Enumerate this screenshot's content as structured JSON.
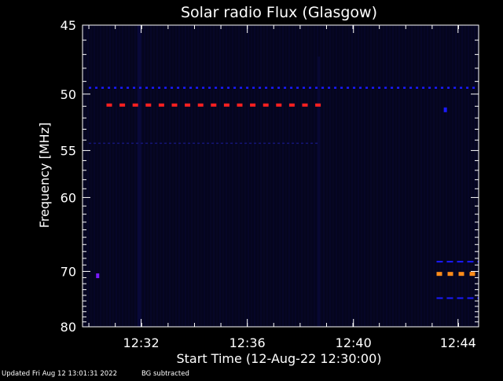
{
  "colors": {
    "background": "#000000",
    "axis": "#ffffff",
    "plot_background": "#05051e",
    "stripe": "#0a0a3c",
    "band_blue": "#1a1aff",
    "band_red": "#ff2020",
    "band_orange": "#ff8c1a",
    "dot_purple": "#7a1aff"
  },
  "chart_data": {
    "type": "heatmap",
    "title": "Solar radio Flux (Glasgow)",
    "xlabel": "Start Time (12-Aug-22 12:30:00)",
    "ylabel": "Frequency [MHz]",
    "x_unit": "minutes",
    "xlim": [
      12.496,
      12.746
    ],
    "ylim": [
      45,
      80
    ],
    "y_scale": "reciprocal",
    "grid": false,
    "x_ticks": [
      {
        "value": 12.533,
        "label": "12:32"
      },
      {
        "value": 12.6,
        "label": "12:36"
      },
      {
        "value": 12.667,
        "label": "12:40"
      },
      {
        "value": 12.733,
        "label": "12:44"
      }
    ],
    "y_ticks": [
      {
        "value": 45,
        "label": "45"
      },
      {
        "value": 50,
        "label": "50"
      },
      {
        "value": 55,
        "label": "55"
      },
      {
        "value": 60,
        "label": "60"
      },
      {
        "value": 70,
        "label": "70"
      },
      {
        "value": 80,
        "label": "80"
      }
    ],
    "features": [
      {
        "kind": "dashed-band",
        "freq_mhz": 49.5,
        "start": "12:30:00",
        "end": "12:45:00",
        "color": "band_blue"
      },
      {
        "kind": "dashed-band",
        "freq_mhz": 50.9,
        "start": "12:30:40",
        "end": "12:38:40",
        "color": "band_red"
      },
      {
        "kind": "dashed-band",
        "freq_mhz": 54.3,
        "start": "12:30:00",
        "end": "12:38:40",
        "color": "stripe"
      },
      {
        "kind": "dashed-band",
        "freq_mhz": 68.5,
        "start": "12:43:10",
        "end": "12:45:00",
        "color": "band_blue"
      },
      {
        "kind": "dashed-band",
        "freq_mhz": 70.4,
        "start": "12:43:10",
        "end": "12:45:00",
        "color": "band_orange"
      },
      {
        "kind": "dashed-band",
        "freq_mhz": 74.5,
        "start": "12:43:10",
        "end": "12:45:00",
        "color": "band_blue"
      },
      {
        "kind": "spot",
        "freq_mhz": 70.7,
        "time": "12:30:20",
        "color": "dot_purple"
      },
      {
        "kind": "spot",
        "freq_mhz": 51.3,
        "time": "12:43:30",
        "color": "band_blue"
      }
    ]
  },
  "footer": {
    "updated": "Updated Fri Aug 12 13:01:31 2022",
    "note": "BG subtracted"
  }
}
